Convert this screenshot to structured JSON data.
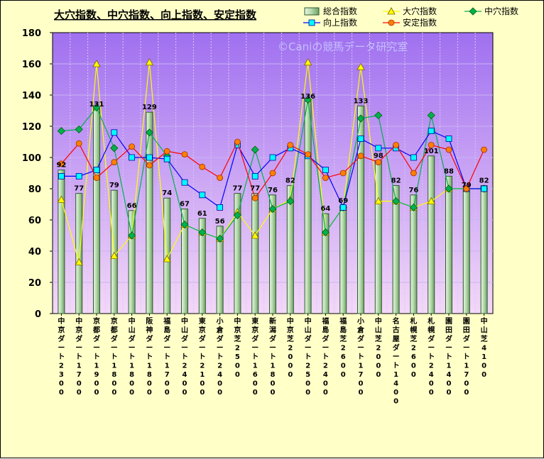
{
  "chart_data": {
    "type": "bar",
    "title": "大穴指数、中穴指数、向上指数、安定指数",
    "watermark": "©Caniの競馬データ研究室",
    "xlabel": "",
    "ylabel": "",
    "ylim": [
      0,
      180
    ],
    "yticks": [
      0,
      20,
      40,
      60,
      80,
      100,
      120,
      140,
      160,
      180
    ],
    "grid": true,
    "legend_position": "top-right",
    "colors": {
      "plot_top": "#a070f0",
      "plot_bottom": "#f4d8f8",
      "bar_fill": "#b8dcae",
      "bar_edge": "#2e5a2e",
      "daiana": "#ffff00",
      "chuana": "#00b050",
      "kojo": "#00ffff",
      "antei": "#ff8000",
      "kojo_line": "#0000ff",
      "antei_line": "#ff0000"
    },
    "categories": [
      "中京ダート2300",
      "中京ダート1700",
      "京都ダート1900",
      "京都ダート1800",
      "中山ダート1800",
      "阪神ダート1800",
      "福島ダート1700",
      "中山ダート2400",
      "東京ダート2100",
      "小倉ダート2400",
      "中京芝2500",
      "東京ダート1600",
      "新潟ダート1800",
      "中京芝2000",
      "中山ダート2500",
      "福島ダート2400",
      "福島芝2600",
      "小倉ダート1700",
      "中山芝2000",
      "名古屋ダート1400",
      "札幌芝2600",
      "札幌ダート2400",
      "園田ダート1400",
      "園田ダート1700",
      "中山芝4100"
    ],
    "series": [
      {
        "name": "総合指数",
        "type": "bar",
        "values": [
          92,
          77,
          131,
          79,
          66,
          129,
          74,
          67,
          61,
          56,
          77,
          77,
          76,
          82,
          136,
          64,
          69,
          133,
          98,
          82,
          76,
          101,
          88,
          79,
          82
        ]
      },
      {
        "name": "大穴指数",
        "type": "line",
        "values": [
          73,
          33,
          160,
          37,
          50,
          161,
          35,
          57,
          52,
          48,
          65,
          50,
          67,
          73,
          161,
          52,
          68,
          158,
          72,
          72,
          68,
          72,
          80,
          80,
          80
        ]
      },
      {
        "name": "中穴指数",
        "type": "line",
        "values": [
          117,
          118,
          132,
          106,
          50,
          116,
          101,
          57,
          52,
          48,
          63,
          105,
          67,
          72,
          137,
          52,
          68,
          125,
          127,
          72,
          68,
          127,
          80,
          80,
          80
        ]
      },
      {
        "name": "向上指数",
        "type": "line",
        "values": [
          88,
          88,
          92,
          116,
          100,
          100,
          99,
          84,
          76,
          68,
          108,
          88,
          100,
          106,
          101,
          92,
          68,
          112,
          106,
          106,
          100,
          117,
          112,
          80,
          80
        ]
      },
      {
        "name": "安定指数",
        "type": "line",
        "values": [
          96,
          109,
          87,
          97,
          107,
          95,
          104,
          102,
          94,
          87,
          110,
          74,
          90,
          108,
          102,
          87,
          90,
          101,
          97,
          108,
          90,
          108,
          105,
          80,
          105
        ]
      }
    ]
  }
}
